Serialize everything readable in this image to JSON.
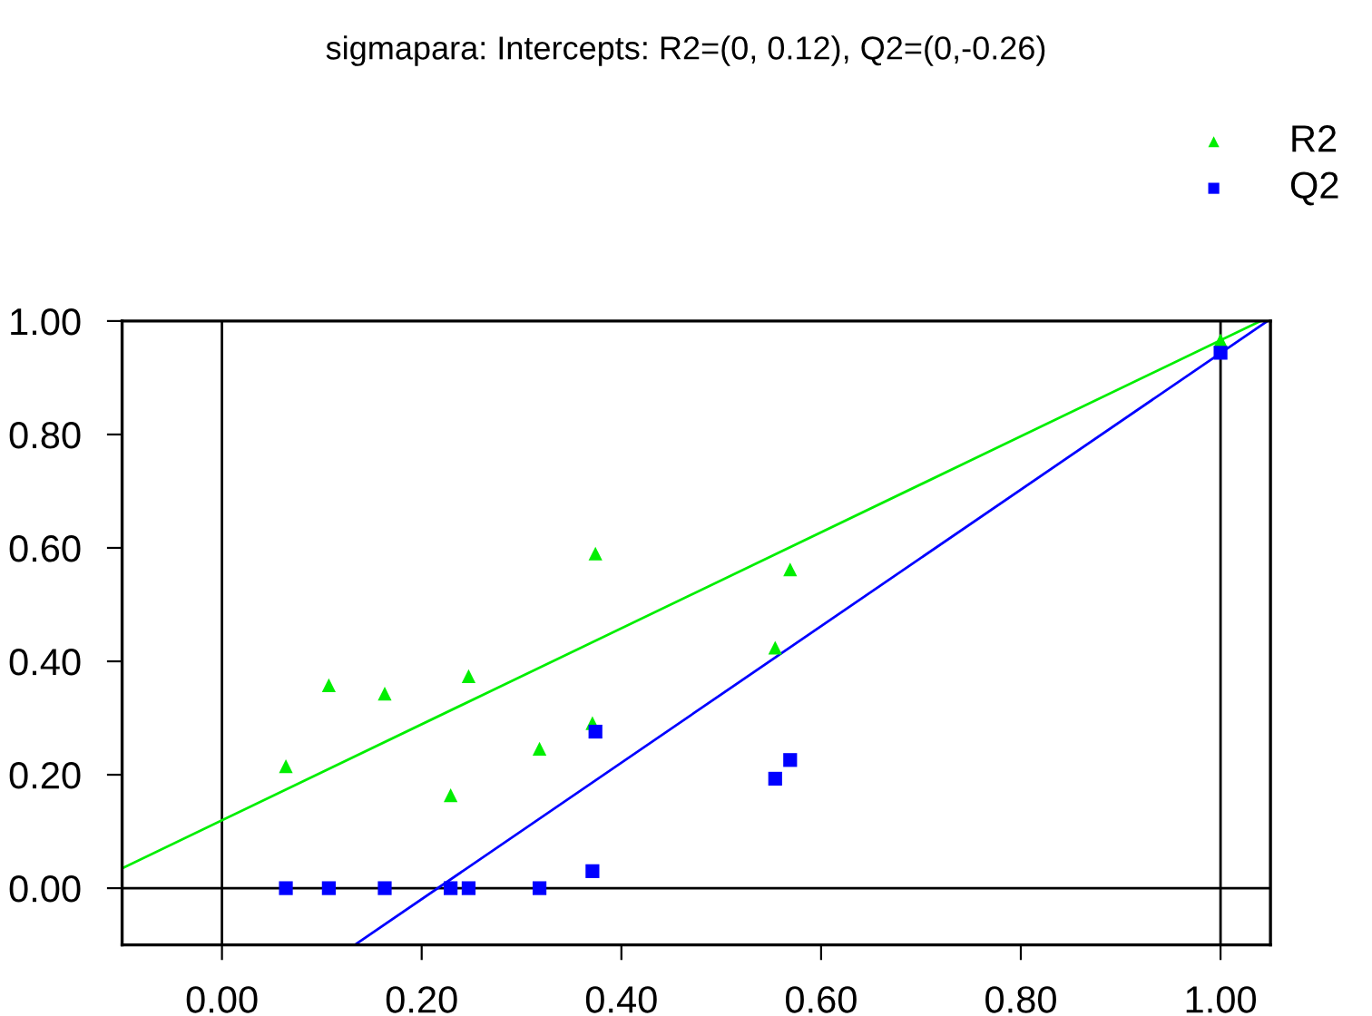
{
  "chart_data": {
    "type": "scatter",
    "title": "sigmapara: Intercepts: R2=(0, 0.12), Q2=(0,-0.26)",
    "series": [
      {
        "name": "R2",
        "color": "#00ee00",
        "marker": "triangle",
        "x": [
          0.064,
          0.107,
          0.163,
          0.247,
          0.229,
          0.318,
          0.374,
          0.371,
          0.569,
          0.554,
          1.0
        ],
        "values": [
          0.215,
          0.358,
          0.343,
          0.374,
          0.164,
          0.246,
          0.59,
          0.291,
          0.562,
          0.424,
          0.966
        ]
      },
      {
        "name": "Q2",
        "color": "#0000ff",
        "marker": "square",
        "x": [
          0.064,
          0.107,
          0.163,
          0.229,
          0.247,
          0.318,
          0.371,
          0.374,
          0.554,
          0.569,
          1.0
        ],
        "values": [
          0,
          0,
          0,
          0,
          0,
          0,
          0.03,
          0.276,
          0.193,
          0.226,
          0.944
        ]
      },
      {
        "type": "line",
        "color": "#00ee00",
        "x": [
          -0.1,
          1.04
        ],
        "values": [
          0.035,
          1.0
        ]
      },
      {
        "type": "line",
        "color": "#0000ff",
        "x": [
          0.133,
          1.047
        ],
        "values": [
          -0.1,
          1.0
        ]
      }
    ],
    "xlim": [
      -0.1,
      1.05
    ],
    "ylim": [
      -0.1,
      1.0
    ],
    "xticks": [
      {
        "value": 0,
        "label": "0.00"
      },
      {
        "value": 0.2,
        "label": "0.20"
      },
      {
        "value": 0.4,
        "label": "0.40"
      },
      {
        "value": 0.6,
        "label": "0.60"
      },
      {
        "value": 0.8,
        "label": "0.80"
      },
      {
        "value": 1,
        "label": "1.00"
      }
    ],
    "yticks": [
      {
        "value": 0,
        "label": "0.00"
      },
      {
        "value": 0.2,
        "label": "0.20"
      },
      {
        "value": 0.4,
        "label": "0.40"
      },
      {
        "value": 0.6,
        "label": "0.60"
      },
      {
        "value": 0.8,
        "label": "0.80"
      },
      {
        "value": 1,
        "label": "1.00"
      }
    ],
    "ref_lines": [
      {
        "axis": "x",
        "value": 0,
        "color": "#000000"
      },
      {
        "axis": "x",
        "value": 1,
        "color": "#000000"
      },
      {
        "axis": "y",
        "value": 0,
        "color": "#000000"
      }
    ],
    "grid": false,
    "legend": "top right"
  }
}
